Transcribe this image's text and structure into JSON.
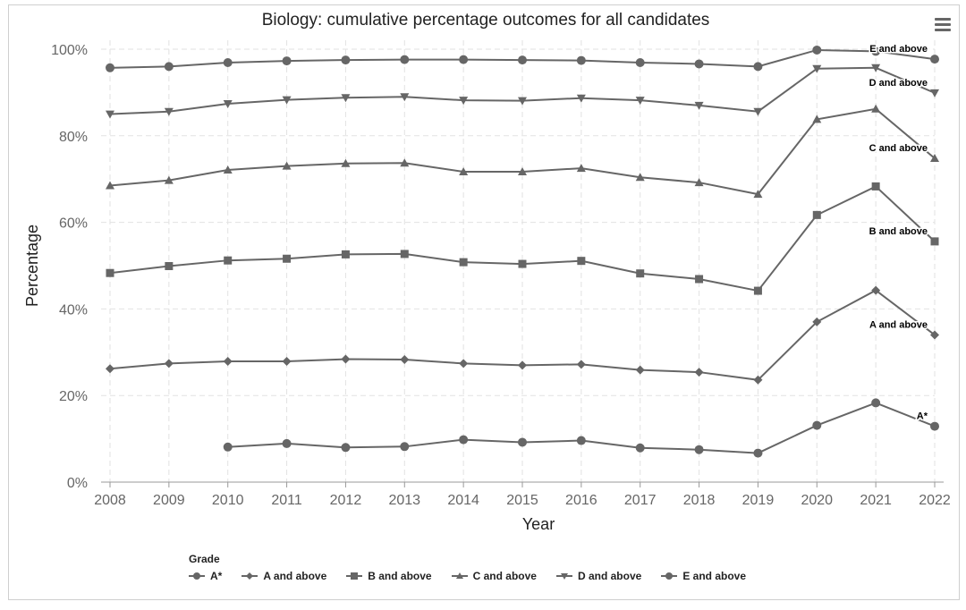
{
  "chart_data": {
    "type": "line",
    "title": "Biology: cumulative percentage outcomes for all candidates",
    "xlabel": "Year",
    "ylabel": "Percentage",
    "ylim": [
      0,
      100
    ],
    "yticks": [
      "0%",
      "20%",
      "40%",
      "60%",
      "80%",
      "100%"
    ],
    "x": [
      2008,
      2009,
      2010,
      2011,
      2012,
      2013,
      2014,
      2015,
      2016,
      2017,
      2018,
      2019,
      2020,
      2021,
      2022
    ],
    "grid": true,
    "legend_title": "Grade",
    "legend_position": "bottom",
    "line_color": "#666666",
    "series": [
      {
        "name": "A*",
        "marker": "circle",
        "end_label": "A*",
        "values": [
          null,
          null,
          8.1,
          8.9,
          8.0,
          8.2,
          9.8,
          9.2,
          9.6,
          7.9,
          7.5,
          6.7,
          13.1,
          18.3,
          12.9
        ]
      },
      {
        "name": "A and above",
        "marker": "diamond",
        "end_label": "A and above",
        "values": [
          26.2,
          27.4,
          27.9,
          27.9,
          28.4,
          28.3,
          27.4,
          27.0,
          27.2,
          25.9,
          25.4,
          23.6,
          37.0,
          44.3,
          34.0
        ]
      },
      {
        "name": "B and above",
        "marker": "square",
        "end_label": "B and above",
        "values": [
          48.3,
          49.9,
          51.2,
          51.6,
          52.6,
          52.7,
          50.8,
          50.4,
          51.1,
          48.2,
          46.9,
          44.2,
          61.7,
          68.3,
          55.6
        ]
      },
      {
        "name": "C and above",
        "marker": "triangle-up",
        "end_label": "C and above",
        "values": [
          68.5,
          69.7,
          72.1,
          73.0,
          73.6,
          73.7,
          71.7,
          71.7,
          72.5,
          70.4,
          69.2,
          66.5,
          83.8,
          86.2,
          74.8
        ]
      },
      {
        "name": "D and above",
        "marker": "triangle-down",
        "end_label": "D and above",
        "values": [
          85.0,
          85.6,
          87.4,
          88.3,
          88.8,
          89.0,
          88.2,
          88.1,
          88.7,
          88.2,
          87.0,
          85.6,
          95.5,
          95.7,
          89.9
        ]
      },
      {
        "name": "E and above",
        "marker": "circle",
        "end_label": "E and above",
        "values": [
          95.7,
          96.0,
          96.9,
          97.3,
          97.5,
          97.6,
          97.6,
          97.5,
          97.4,
          96.9,
          96.6,
          96.0,
          99.8,
          99.5,
          97.7
        ]
      }
    ]
  }
}
